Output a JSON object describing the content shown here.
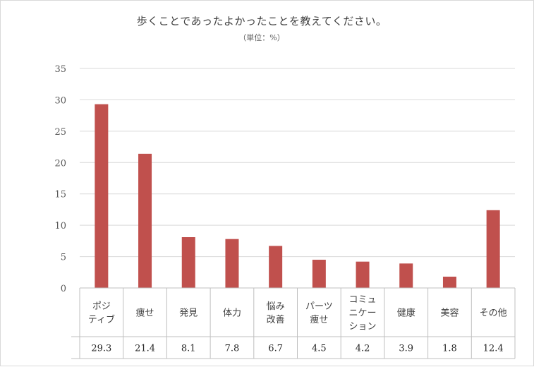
{
  "chart_data": {
    "type": "bar",
    "title": "歩くことであったよかったことを教えてください。",
    "subtitle": "（単位：%）",
    "categories": [
      [
        "ポジ",
        "ティブ"
      ],
      [
        "痩せ"
      ],
      [
        "発見"
      ],
      [
        "体力"
      ],
      [
        "悩み",
        "改善"
      ],
      [
        "パーツ",
        "痩せ"
      ],
      [
        "コミュ",
        "ニケー",
        "ション"
      ],
      [
        "健康"
      ],
      [
        "美容"
      ],
      [
        "その他"
      ]
    ],
    "values": [
      29.3,
      21.4,
      8.1,
      7.8,
      6.7,
      4.5,
      4.2,
      3.9,
      1.8,
      12.4
    ],
    "value_labels": [
      "29.3",
      "21.4",
      "8.1",
      "7.8",
      "6.7",
      "4.5",
      "4.2",
      "3.9",
      "1.8",
      "12.4"
    ],
    "ylim": [
      0,
      35
    ],
    "yticks": [
      0,
      5,
      10,
      15,
      20,
      25,
      30,
      35
    ],
    "grid": true,
    "data_table": true,
    "bar_color": "#c0504d"
  }
}
